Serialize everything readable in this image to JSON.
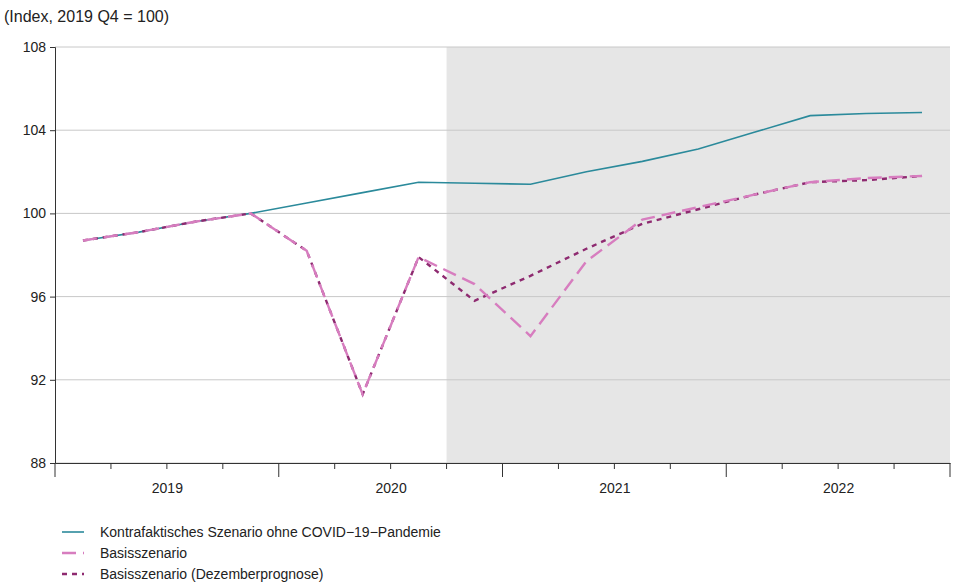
{
  "chart_data": {
    "type": "line",
    "title": "(Index, 2019 Q4 = 100)",
    "x": [
      2019.125,
      2019.375,
      2019.625,
      2019.875,
      2020.125,
      2020.375,
      2020.625,
      2020.875,
      2021.125,
      2021.375,
      2021.625,
      2021.875,
      2022.125,
      2022.375,
      2022.625,
      2022.875
    ],
    "xlim": [
      2019,
      2023
    ],
    "xticks": [
      {
        "value": 2019.5,
        "label": "2019"
      },
      {
        "value": 2020.5,
        "label": "2020"
      },
      {
        "value": 2021.5,
        "label": "2021"
      },
      {
        "value": 2022.5,
        "label": "2022"
      }
    ],
    "ylim": [
      88,
      108
    ],
    "yticks": [
      88,
      92,
      96,
      100,
      104,
      108
    ],
    "grid": true,
    "legend": "bottom",
    "shaded_region": [
      2020.75,
      2023
    ],
    "series": [
      {
        "name": "Kontrafaktisches Szenario ohne COVID−19−Pandemie",
        "color": "#2b8a9b",
        "line_style": "solid",
        "values": [
          98.7,
          99.1,
          99.6,
          100.0,
          100.5,
          101.0,
          101.5,
          101.45,
          101.4,
          102.0,
          102.5,
          103.1,
          103.9,
          104.7,
          104.8,
          104.85
        ]
      },
      {
        "name": "Basisszenario (Dezemberprognose)",
        "color": "#8e2a70",
        "line_style": "dotted",
        "values": [
          98.7,
          99.1,
          99.6,
          100.0,
          98.2,
          91.3,
          97.9,
          95.8,
          97.0,
          98.3,
          99.5,
          100.2,
          100.9,
          101.5,
          101.6,
          101.8
        ]
      },
      {
        "name": "Basisszenario",
        "color": "#d77dbf",
        "line_style": "dashed",
        "values": [
          98.7,
          99.1,
          99.6,
          100.0,
          98.2,
          91.3,
          97.9,
          96.6,
          94.1,
          97.7,
          99.7,
          100.3,
          100.9,
          101.5,
          101.7,
          101.8
        ]
      }
    ]
  }
}
